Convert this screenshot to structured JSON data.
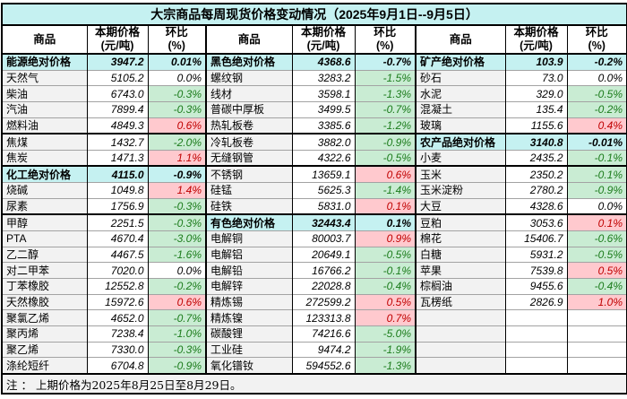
{
  "title": "大宗商品每周现货价格变动情况（2025年9月1日--9月5日）",
  "headers": {
    "commodity": "商品",
    "price": "本期价格\n(元/吨)",
    "pct": "环比\n(%)"
  },
  "footer_note": "注 ： 上期价格为2025年8月25日至8月29日。",
  "colors": {
    "header_cyan": "#c5f1f1",
    "up_bg": "#ffc9ce",
    "up_text": "#c00000",
    "down_bg": "#c9ecd3",
    "down_text": "#1c7c1c",
    "name_col_bg": "#f2f2f2"
  },
  "groups": [
    {
      "rows": [
        {
          "name": "能源绝对价格",
          "price": "3947.2",
          "pct": "0.01%",
          "kind": "section",
          "trend": null
        },
        {
          "name": "天然气",
          "price": "5105.2",
          "pct": "0.0%",
          "kind": "item",
          "trend": "flat"
        },
        {
          "name": "柴油",
          "price": "6743.0",
          "pct": "-0.3%",
          "kind": "item",
          "trend": "down"
        },
        {
          "name": "汽油",
          "price": "7899.4",
          "pct": "-0.3%",
          "kind": "item",
          "trend": "down"
        },
        {
          "name": "燃料油",
          "price": "4849.3",
          "pct": "0.6%",
          "kind": "item",
          "trend": "up"
        },
        {
          "name": "焦煤",
          "price": "1432.7",
          "pct": "-2.0%",
          "kind": "item",
          "trend": "down"
        },
        {
          "name": "焦炭",
          "price": "1471.3",
          "pct": "1.1%",
          "kind": "item",
          "trend": "up"
        },
        {
          "name": "化工绝对价格",
          "price": "4115.0",
          "pct": "-0.9%",
          "kind": "section",
          "trend": null
        },
        {
          "name": "烧碱",
          "price": "1049.8",
          "pct": "1.4%",
          "kind": "item",
          "trend": "up"
        },
        {
          "name": "尿素",
          "price": "1756.9",
          "pct": "-0.3%",
          "kind": "item",
          "trend": "down"
        },
        {
          "name": "甲醇",
          "price": "2251.5",
          "pct": "-0.3%",
          "kind": "item",
          "trend": "down"
        },
        {
          "name": "PTA",
          "price": "4670.4",
          "pct": "-3.0%",
          "kind": "item",
          "trend": "down"
        },
        {
          "name": "乙二醇",
          "price": "4467.5",
          "pct": "-1.6%",
          "kind": "item",
          "trend": "down"
        },
        {
          "name": "对二甲苯",
          "price": "7020.0",
          "pct": "0.0%",
          "kind": "item",
          "trend": "flat"
        },
        {
          "name": "丁苯橡胶",
          "price": "12552.8",
          "pct": "-0.2%",
          "kind": "item",
          "trend": "down"
        },
        {
          "name": "天然橡胶",
          "price": "15972.6",
          "pct": "0.6%",
          "kind": "item",
          "trend": "up"
        },
        {
          "name": "聚氯乙烯",
          "price": "4652.0",
          "pct": "-0.7%",
          "kind": "item",
          "trend": "down"
        },
        {
          "name": "聚丙烯",
          "price": "7238.4",
          "pct": "-1.0%",
          "kind": "item",
          "trend": "down"
        },
        {
          "name": "聚乙烯",
          "price": "7330.0",
          "pct": "-0.3%",
          "kind": "item",
          "trend": "down"
        },
        {
          "name": "涤纶短纤",
          "price": "6704.8",
          "pct": "-0.9%",
          "kind": "item",
          "trend": "down"
        }
      ]
    },
    {
      "rows": [
        {
          "name": "黑色绝对价格",
          "price": "4368.6",
          "pct": "-0.7%",
          "kind": "section",
          "trend": null
        },
        {
          "name": "螺纹钢",
          "price": "3283.2",
          "pct": "-1.5%",
          "kind": "item",
          "trend": "down"
        },
        {
          "name": "线材",
          "price": "3598.1",
          "pct": "-1.3%",
          "kind": "item",
          "trend": "down"
        },
        {
          "name": "普碳中厚板",
          "price": "3499.5",
          "pct": "-0.7%",
          "kind": "item",
          "trend": "down"
        },
        {
          "name": "热轧板卷",
          "price": "3385.6",
          "pct": "-1.2%",
          "kind": "item",
          "trend": "down"
        },
        {
          "name": "冷轧板卷",
          "price": "3882.0",
          "pct": "-0.9%",
          "kind": "item",
          "trend": "down"
        },
        {
          "name": "无缝钢管",
          "price": "4322.6",
          "pct": "-0.5%",
          "kind": "item",
          "trend": "down"
        },
        {
          "name": "不锈钢",
          "price": "13659.1",
          "pct": "0.6%",
          "kind": "item",
          "trend": "up"
        },
        {
          "name": "硅锰",
          "price": "5625.3",
          "pct": "-1.4%",
          "kind": "item",
          "trend": "down"
        },
        {
          "name": "硅铁",
          "price": "5831.0",
          "pct": "0.1%",
          "kind": "item",
          "trend": "up"
        },
        {
          "name": "有色绝对价格",
          "price": "32443.4",
          "pct": "0.1%",
          "kind": "section",
          "trend": null
        },
        {
          "name": "电解铜",
          "price": "80003.7",
          "pct": "0.9%",
          "kind": "item",
          "trend": "up"
        },
        {
          "name": "电解铝",
          "price": "20649.1",
          "pct": "-0.5%",
          "kind": "item",
          "trend": "down"
        },
        {
          "name": "电解铅",
          "price": "16766.2",
          "pct": "-0.1%",
          "kind": "item",
          "trend": "down"
        },
        {
          "name": "电解锌",
          "price": "22028.8",
          "pct": "-0.4%",
          "kind": "item",
          "trend": "down"
        },
        {
          "name": "精炼锡",
          "price": "272599.2",
          "pct": "0.5%",
          "kind": "item",
          "trend": "up"
        },
        {
          "name": "精炼镍",
          "price": "123313.8",
          "pct": "0.7%",
          "kind": "item",
          "trend": "up"
        },
        {
          "name": "碳酸锂",
          "price": "74216.6",
          "pct": "-5.0%",
          "kind": "item",
          "trend": "down"
        },
        {
          "name": "工业硅",
          "price": "9474.2",
          "pct": "-1.9%",
          "kind": "item",
          "trend": "down"
        },
        {
          "name": "氧化镨钕",
          "price": "594552.6",
          "pct": "-1.3%",
          "kind": "item",
          "trend": "down"
        }
      ]
    },
    {
      "rows": [
        {
          "name": "矿产绝对价格",
          "price": "103.9",
          "pct": "-0.2%",
          "kind": "section",
          "trend": null
        },
        {
          "name": "砂石",
          "price": "73.0",
          "pct": "0.0%",
          "kind": "item",
          "trend": "flat"
        },
        {
          "name": "水泥",
          "price": "329.0",
          "pct": "-0.5%",
          "kind": "item",
          "trend": "down"
        },
        {
          "name": "混凝土",
          "price": "135.4",
          "pct": "-0.2%",
          "kind": "item",
          "trend": "down"
        },
        {
          "name": "玻璃",
          "price": "1155.6",
          "pct": "0.4%",
          "kind": "item",
          "trend": "up"
        },
        {
          "name": "农产品绝对价格",
          "price": "3140.8",
          "pct": "-0.01%",
          "kind": "section",
          "trend": null
        },
        {
          "name": "小麦",
          "price": "2435.2",
          "pct": "-0.1%",
          "kind": "item",
          "trend": "down"
        },
        {
          "name": "玉米",
          "price": "2350.2",
          "pct": "-0.1%",
          "kind": "item",
          "trend": "down"
        },
        {
          "name": "玉米淀粉",
          "price": "2780.2",
          "pct": "-0.9%",
          "kind": "item",
          "trend": "down"
        },
        {
          "name": "大豆",
          "price": "4328.6",
          "pct": "0.0%",
          "kind": "item",
          "trend": "flat"
        },
        {
          "name": "豆粕",
          "price": "3053.6",
          "pct": "0.1%",
          "kind": "item",
          "trend": "up"
        },
        {
          "name": "棉花",
          "price": "15406.7",
          "pct": "-0.6%",
          "kind": "item",
          "trend": "down"
        },
        {
          "name": "白糖",
          "price": "5931.2",
          "pct": "-0.5%",
          "kind": "item",
          "trend": "down"
        },
        {
          "name": "苹果",
          "price": "7539.8",
          "pct": "0.5%",
          "kind": "item",
          "trend": "up"
        },
        {
          "name": "棕榈油",
          "price": "9455.6",
          "pct": "-0.4%",
          "kind": "item",
          "trend": "down"
        },
        {
          "name": "瓦楞纸",
          "price": "2826.9",
          "pct": "1.0%",
          "kind": "item",
          "trend": "up"
        },
        {
          "name": "",
          "price": "",
          "pct": "",
          "kind": "empty",
          "trend": null
        },
        {
          "name": "",
          "price": "",
          "pct": "",
          "kind": "empty",
          "trend": null
        },
        {
          "name": "",
          "price": "",
          "pct": "",
          "kind": "empty",
          "trend": null
        },
        {
          "name": "",
          "price": "",
          "pct": "",
          "kind": "empty",
          "trend": null
        }
      ]
    }
  ]
}
